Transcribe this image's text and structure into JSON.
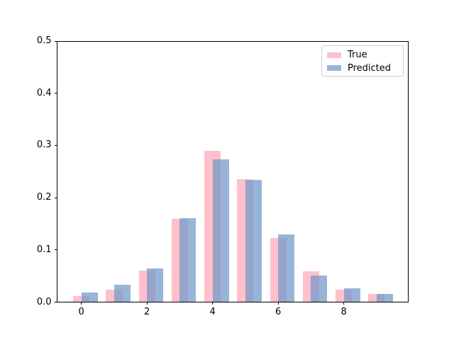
{
  "figure": {
    "background": "#ffffff",
    "text_color": "#000000",
    "spine_color": "#000000",
    "legend_border_color": "#cccccc",
    "legend_background": "#ffffff"
  },
  "chart_data": {
    "type": "bar",
    "title": "",
    "xlabel": "",
    "ylabel": "",
    "categories": [
      0,
      1,
      2,
      3,
      4,
      5,
      6,
      7,
      8,
      9
    ],
    "series": [
      {
        "name": "True",
        "color": "#ffc0cb",
        "values": [
          0.011,
          0.024,
          0.06,
          0.16,
          0.29,
          0.236,
          0.123,
          0.059,
          0.024,
          0.015
        ]
      },
      {
        "name": "Predicted",
        "color": "rgba(114,152,202,0.73)",
        "values": [
          0.018,
          0.033,
          0.064,
          0.161,
          0.273,
          0.234,
          0.129,
          0.051,
          0.027,
          0.015
        ]
      }
    ],
    "ylim": [
      0.0,
      0.5
    ],
    "ytick_labels": [
      "0.0",
      "0.1",
      "0.2",
      "0.3",
      "0.4",
      "0.5"
    ],
    "xtick_values": [
      0,
      2,
      4,
      6,
      8
    ],
    "xtick_labels": [
      "0",
      "2",
      "4",
      "6",
      "8"
    ],
    "bar_width_units": 0.5,
    "series_offset_units": 0.25,
    "grid": false,
    "legend": {
      "position": "upper right",
      "entries": [
        "True",
        "Predicted"
      ]
    }
  }
}
